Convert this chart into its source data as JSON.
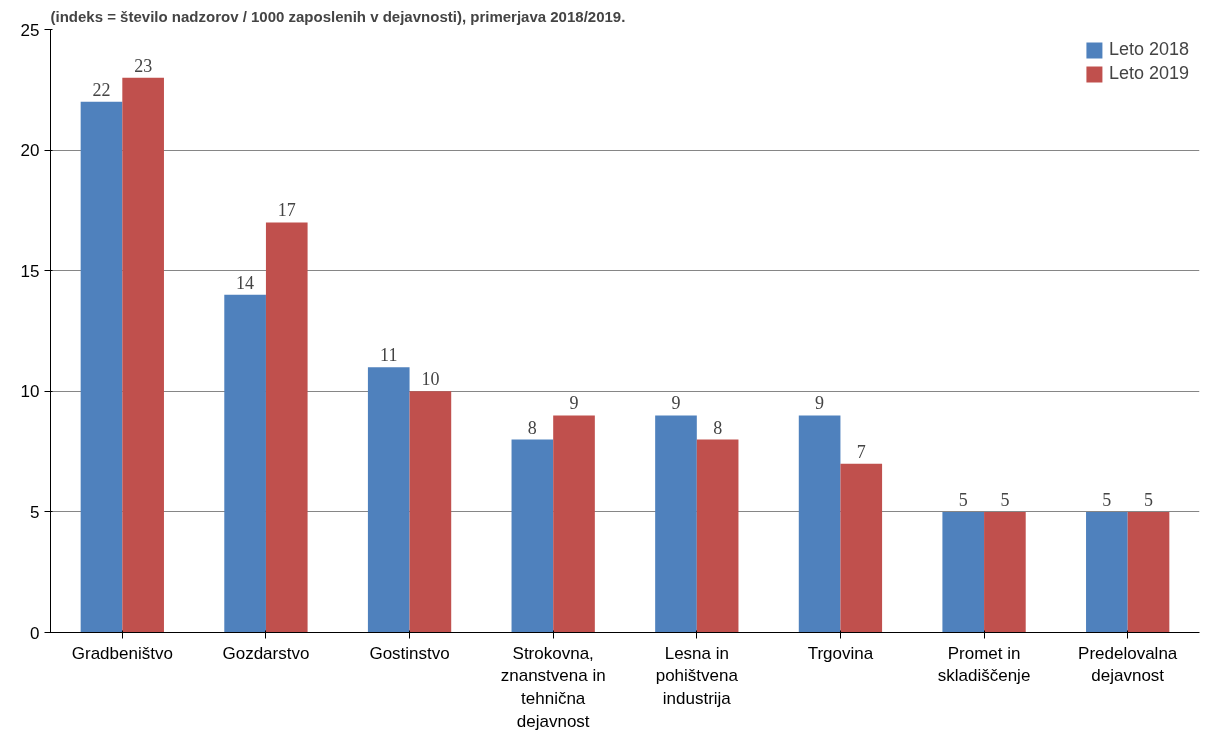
{
  "chart_data": {
    "type": "bar",
    "title": "(indeks = število nadzorov / 1000 zaposlenih v dejavnosti), primerjava 2018/2019.",
    "categories": [
      "Gradbeništvo",
      "Gozdarstvo",
      "Gostinstvo",
      "Strokovna,\nznanstvena in\ntehnična\ndejavnost",
      "Lesna in\npohištvena\nindustrija",
      "Trgovina",
      "Promet in\nskladiščenje",
      "Predelovalna\ndejavnost"
    ],
    "series": [
      {
        "name": "Leto 2018",
        "color": "#4f81bd",
        "values": [
          22,
          14,
          11,
          8,
          9,
          9,
          5,
          5
        ]
      },
      {
        "name": "Leto 2019",
        "color": "#c0504d",
        "values": [
          23,
          17,
          10,
          9,
          8,
          7,
          5,
          5
        ]
      }
    ],
    "ylim": [
      0,
      25
    ],
    "yticks": [
      0,
      5,
      10,
      15,
      20,
      25
    ],
    "grid": "y",
    "legend": "top right",
    "data_labels": true
  }
}
